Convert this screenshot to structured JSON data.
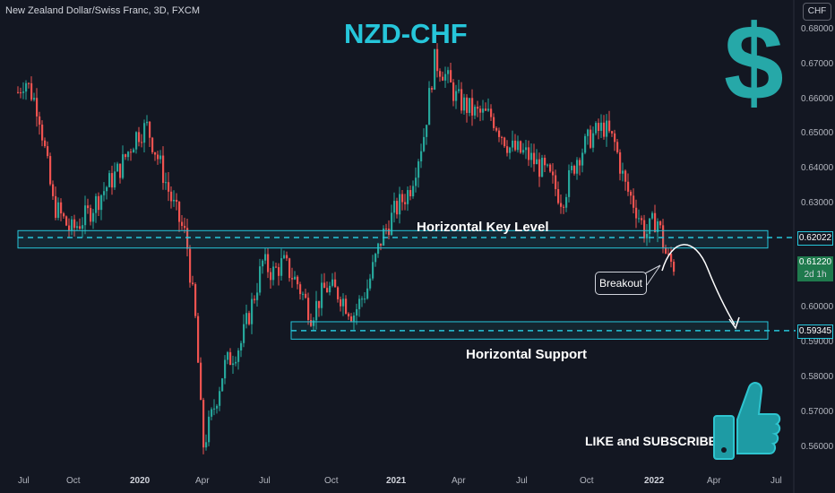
{
  "header": {
    "symbol": "New Zealand Dollar/Swiss Franc, 3D, FXCM",
    "currency_badge": "CHF"
  },
  "annotations": {
    "title": "NZD-CHF",
    "key_level": "Horizontal Key Level",
    "support": "Horizontal Support",
    "breakout": "Breakout",
    "like": "LIKE and SUBSCRIBE",
    "dollar": "$"
  },
  "colors": {
    "up": "#26a69a",
    "down": "#ef5350",
    "zone": "#26c6da",
    "bg": "#131722"
  },
  "chart_data": {
    "type": "candlestick",
    "ylim": [
      0.5545,
      0.6885
    ],
    "y_ticks": [
      "0.68000",
      "0.67000",
      "0.66000",
      "0.65000",
      "0.64000",
      "0.63000",
      "0.60000",
      "0.59000",
      "0.58000",
      "0.57000",
      "0.56000"
    ],
    "y_tick_values": [
      0.68,
      0.67,
      0.66,
      0.65,
      0.64,
      0.63,
      0.6,
      0.59,
      0.58,
      0.57,
      0.56
    ],
    "x_ticks": [
      {
        "label": "Jul",
        "bold": false
      },
      {
        "label": "Oct",
        "bold": false
      },
      {
        "label": "2020",
        "bold": true
      },
      {
        "label": "Apr",
        "bold": false
      },
      {
        "label": "Jul",
        "bold": false
      },
      {
        "label": "Oct",
        "bold": false
      },
      {
        "label": "2021",
        "bold": true
      },
      {
        "label": "Apr",
        "bold": false
      },
      {
        "label": "Jul",
        "bold": false
      },
      {
        "label": "Oct",
        "bold": false
      },
      {
        "label": "2022",
        "bold": true
      },
      {
        "label": "Apr",
        "bold": false
      },
      {
        "label": "Jul",
        "bold": false
      }
    ],
    "key_level": {
      "label": "0.62022",
      "value": 0.62022,
      "zone": [
        0.6172,
        0.6222
      ]
    },
    "support": {
      "label": "0.59345",
      "value": 0.59345,
      "zone": [
        0.591,
        0.596
      ]
    },
    "current_price": {
      "label": "0.61220",
      "countdown": "2d 1h",
      "value": 0.6122
    },
    "trend_path": [
      [
        "2019-06-25",
        0.662
      ],
      [
        "2019-07-05",
        0.666
      ],
      [
        "2019-07-25",
        0.657
      ],
      [
        "2019-08-15",
        0.63
      ],
      [
        "2019-09-10",
        0.622
      ],
      [
        "2019-10-05",
        0.627
      ],
      [
        "2019-10-25",
        0.633
      ],
      [
        "2019-11-20",
        0.64
      ],
      [
        "2019-12-15",
        0.65
      ],
      [
        "2019-12-30",
        0.652
      ],
      [
        "2020-01-20",
        0.64
      ],
      [
        "2020-02-05",
        0.63
      ],
      [
        "2020-02-25",
        0.62
      ],
      [
        "2020-03-10",
        0.595
      ],
      [
        "2020-03-20",
        0.56
      ],
      [
        "2020-04-01",
        0.568
      ],
      [
        "2020-04-20",
        0.583
      ],
      [
        "2020-05-15",
        0.59
      ],
      [
        "2020-06-05",
        0.605
      ],
      [
        "2020-06-15",
        0.613
      ],
      [
        "2020-06-30",
        0.61
      ],
      [
        "2020-07-15",
        0.613
      ],
      [
        "2020-08-05",
        0.607
      ],
      [
        "2020-08-25",
        0.598
      ],
      [
        "2020-09-15",
        0.606
      ],
      [
        "2020-10-05",
        0.604
      ],
      [
        "2020-10-25",
        0.598
      ],
      [
        "2020-11-15",
        0.606
      ],
      [
        "2020-12-05",
        0.62
      ],
      [
        "2020-12-25",
        0.628
      ],
      [
        "2021-01-15",
        0.634
      ],
      [
        "2021-02-05",
        0.65
      ],
      [
        "2021-02-20",
        0.671
      ],
      [
        "2021-03-05",
        0.668
      ],
      [
        "2021-03-25",
        0.66
      ],
      [
        "2021-04-20",
        0.656
      ],
      [
        "2021-05-15",
        0.655
      ],
      [
        "2021-06-10",
        0.646
      ],
      [
        "2021-07-05",
        0.644
      ],
      [
        "2021-08-05",
        0.638
      ],
      [
        "2021-08-25",
        0.631
      ],
      [
        "2021-09-15",
        0.643
      ],
      [
        "2021-10-05",
        0.649
      ],
      [
        "2021-10-25",
        0.652
      ],
      [
        "2021-11-10",
        0.647
      ],
      [
        "2021-11-25",
        0.635
      ],
      [
        "2021-12-10",
        0.629
      ],
      [
        "2021-12-25",
        0.621
      ],
      [
        "2022-01-10",
        0.626
      ],
      [
        "2022-01-25",
        0.614
      ],
      [
        "2022-02-05",
        0.612
      ]
    ]
  }
}
